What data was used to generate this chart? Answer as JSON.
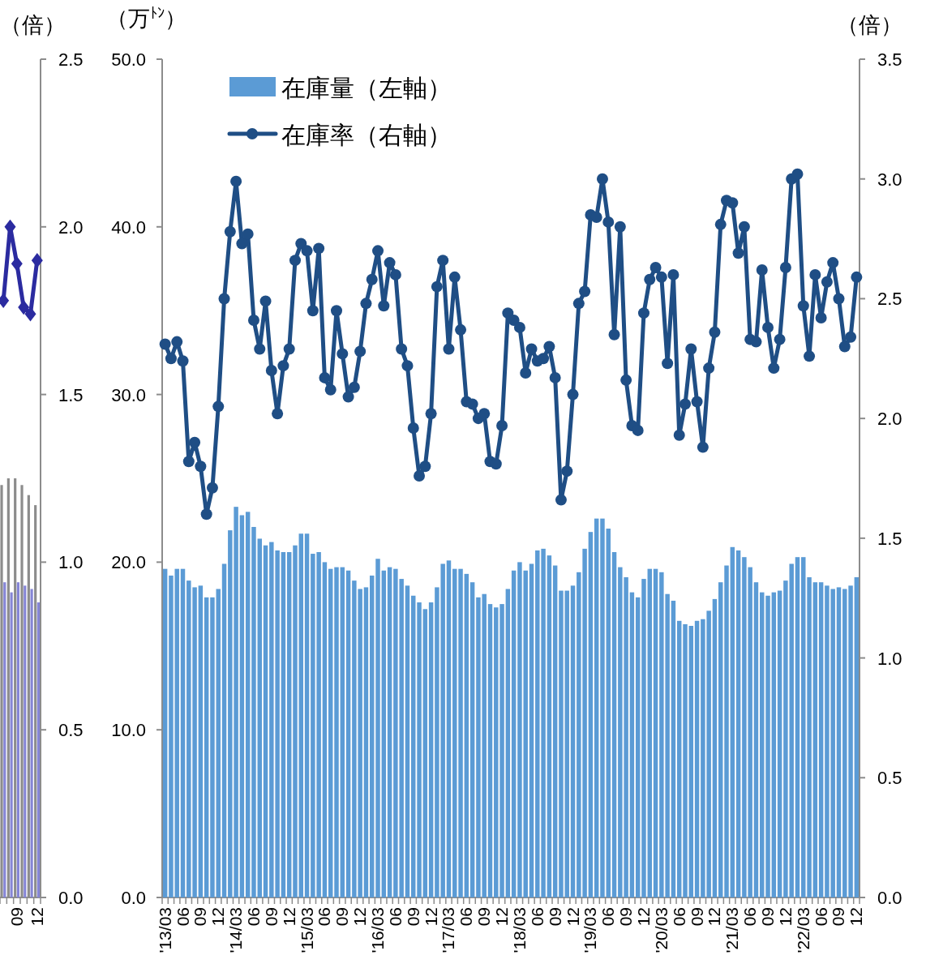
{
  "chart_data": [
    {
      "type": "bar",
      "ylabel": "（倍）",
      "categories": [
        null,
        null,
        "09",
        null,
        null,
        "12"
      ],
      "series": [
        {
          "color": "#8c8c8c",
          "values": [
            1.23,
            1.25,
            1.25,
            1.23,
            1.2,
            1.17
          ]
        },
        {
          "color": "#8585d6",
          "values": [
            0.94,
            0.91,
            0.94,
            0.93,
            0.92,
            0.88
          ]
        },
        {
          "type": "line",
          "color": "#2b2ba0",
          "marker": "diamond",
          "values": [
            1.78,
            2.0,
            1.89,
            1.76,
            1.74,
            1.9
          ]
        }
      ],
      "ylim": [
        0,
        2.5
      ],
      "yticks": [
        {
          "value": 0,
          "label": "0.0"
        },
        {
          "value": 0.5,
          "label": "0.5"
        },
        {
          "value": 1,
          "label": "1.0"
        },
        {
          "value": 1.5,
          "label": "1.5"
        },
        {
          "value": 2,
          "label": "2.0"
        },
        {
          "value": 2.5,
          "label": "2.5"
        }
      ],
      "line_style": "solid"
    },
    {
      "type": "bar",
      "ylabel": "（万$^{ﾄﾝ}$）",
      "y2label": "（倍）",
      "categories": [
        "'13/03",
        null,
        null,
        "06",
        null,
        null,
        "09",
        null,
        null,
        "12",
        null,
        null,
        "'14/03",
        null,
        null,
        "06",
        null,
        null,
        "09",
        null,
        null,
        "12",
        null,
        null,
        "'15/03",
        null,
        null,
        "06",
        null,
        null,
        "09",
        null,
        null,
        "12",
        null,
        null,
        "'16/03",
        null,
        null,
        "06",
        null,
        null,
        "09",
        null,
        null,
        "12",
        null,
        null,
        "'17/03",
        null,
        null,
        "06",
        null,
        null,
        "09",
        null,
        null,
        "12",
        null,
        null,
        "'18/03",
        null,
        null,
        "06",
        null,
        null,
        "09",
        null,
        null,
        "12",
        null,
        null,
        "'19/03",
        null,
        null,
        "06",
        null,
        null,
        "09",
        null,
        null,
        "12",
        null,
        null,
        "'20/03",
        null,
        null,
        "06",
        null,
        null,
        "09",
        null,
        null,
        "12",
        null,
        null,
        "'21/03",
        null,
        null,
        "06",
        null,
        null,
        "09",
        null,
        null,
        "12",
        null,
        null,
        "'22/03",
        null,
        null,
        "06",
        null,
        null,
        "09",
        null,
        null,
        "12"
      ],
      "series": [
        {
          "name": "在庫量（左軸）",
          "color": "#5b9bd5",
          "values": [
            19.6,
            19.2,
            19.6,
            19.6,
            18.9,
            18.5,
            18.6,
            17.9,
            17.9,
            18.4,
            19.9,
            21.9,
            23.3,
            22.8,
            23.0,
            22.1,
            21.4,
            21.0,
            21.2,
            20.7,
            20.6,
            20.6,
            21.0,
            21.7,
            21.7,
            20.5,
            20.6,
            20.0,
            19.6,
            19.7,
            19.7,
            19.5,
            18.9,
            18.4,
            18.5,
            19.2,
            20.2,
            19.5,
            19.7,
            19.6,
            19.0,
            18.6,
            18.0,
            17.6,
            17.2,
            17.6,
            18.5,
            19.9,
            20.1,
            19.6,
            19.6,
            19.3,
            18.8,
            17.9,
            18.1,
            17.5,
            17.3,
            17.5,
            18.4,
            19.5,
            20.0,
            19.5,
            19.9,
            20.7,
            20.8,
            20.4,
            19.8,
            18.3,
            18.3,
            18.6,
            19.4,
            20.8,
            21.8,
            22.6,
            22.6,
            22.0,
            20.6,
            19.7,
            19.1,
            18.2,
            17.9,
            19.0,
            19.6,
            19.6,
            19.4,
            18.1,
            17.7,
            16.5,
            16.3,
            16.2,
            16.5,
            16.6,
            17.1,
            17.8,
            18.8,
            19.8,
            20.9,
            20.7,
            20.3,
            19.7,
            18.8,
            18.2,
            18.0,
            18.2,
            18.3,
            18.9,
            19.9,
            20.3,
            20.3,
            19.1,
            18.8,
            18.8,
            18.6,
            18.4,
            18.5,
            18.4,
            18.6,
            19.1
          ]
        },
        {
          "name": "在庫率（右軸）",
          "type": "line",
          "axis": "y2",
          "color": "#1f4e85",
          "marker": "circle",
          "values": [
            2.31,
            2.25,
            2.32,
            2.24,
            1.82,
            1.9,
            1.8,
            1.6,
            1.71,
            2.05,
            2.5,
            2.78,
            2.99,
            2.73,
            2.77,
            2.41,
            2.29,
            2.49,
            2.2,
            2.02,
            2.22,
            2.29,
            2.66,
            2.73,
            2.7,
            2.45,
            2.71,
            2.17,
            2.12,
            2.45,
            2.27,
            2.09,
            2.13,
            2.28,
            2.48,
            2.58,
            2.7,
            2.47,
            2.65,
            2.6,
            2.29,
            2.22,
            1.96,
            1.76,
            1.8,
            2.02,
            2.55,
            2.66,
            2.29,
            2.59,
            2.37,
            2.07,
            2.06,
            2.0,
            2.02,
            1.82,
            1.81,
            1.97,
            2.44,
            2.41,
            2.38,
            2.19,
            2.29,
            2.24,
            2.25,
            2.3,
            2.17,
            1.66,
            1.78,
            2.1,
            2.48,
            2.53,
            2.85,
            2.84,
            3.0,
            2.82,
            2.35,
            2.8,
            2.16,
            1.97,
            1.95,
            2.44,
            2.58,
            2.63,
            2.59,
            2.23,
            2.6,
            1.93,
            2.06,
            2.29,
            2.07,
            1.88,
            2.21,
            2.36,
            2.81,
            2.91,
            2.9,
            2.69,
            2.8,
            2.33,
            2.32,
            2.62,
            2.38,
            2.21,
            2.33,
            2.63,
            3.0,
            3.02,
            2.47,
            2.26,
            2.6,
            2.42,
            2.57,
            2.65,
            2.5,
            2.3,
            2.34,
            2.59
          ]
        }
      ],
      "ylim": [
        0,
        50
      ],
      "yticks": [
        {
          "value": 0,
          "label": "0.0"
        },
        {
          "value": 10,
          "label": "10.0"
        },
        {
          "value": 20,
          "label": "20.0"
        },
        {
          "value": 30,
          "label": "30.0"
        },
        {
          "value": 40,
          "label": "40.0"
        },
        {
          "value": 50,
          "label": "50.0"
        }
      ],
      "y2lim": [
        0,
        3.5
      ],
      "y2ticks": [
        {
          "value": 0,
          "label": "0.0"
        },
        {
          "value": 0.5,
          "label": "0.5"
        },
        {
          "value": 1,
          "label": "1.0"
        },
        {
          "value": 1.5,
          "label": "1.5"
        },
        {
          "value": 2,
          "label": "2.0"
        },
        {
          "value": 2.5,
          "label": "2.5"
        },
        {
          "value": 3,
          "label": "3.0"
        },
        {
          "value": 3.5,
          "label": "3.5"
        }
      ],
      "legend": "top left",
      "line_style": "solid"
    }
  ]
}
